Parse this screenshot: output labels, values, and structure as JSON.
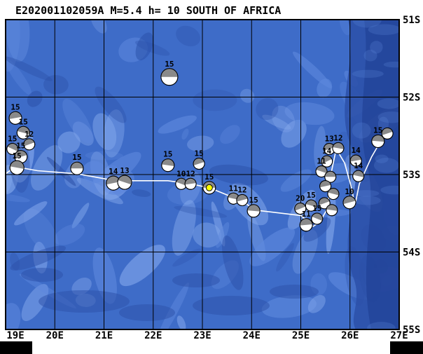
{
  "title": "E202001102059A M=5.4 h= 10 SOUTH OF AFRICA",
  "map": {
    "lon_range": [
      19,
      27
    ],
    "lat_range": [
      51,
      55
    ],
    "lon_ticks": [
      {
        "value": 19,
        "label": "19E"
      },
      {
        "value": 20,
        "label": "20E"
      },
      {
        "value": 21,
        "label": "21E"
      },
      {
        "value": 22,
        "label": "22E"
      },
      {
        "value": 23,
        "label": "23E"
      },
      {
        "value": 24,
        "label": "24E"
      },
      {
        "value": 25,
        "label": "25E"
      },
      {
        "value": 26,
        "label": "26E"
      },
      {
        "value": 27,
        "label": "27E"
      }
    ],
    "lat_ticks": [
      {
        "value": 51,
        "label": "51S"
      },
      {
        "value": 52,
        "label": "52S"
      },
      {
        "value": 53,
        "label": "53S"
      },
      {
        "value": 54,
        "label": "54S"
      },
      {
        "value": 55,
        "label": "55S"
      }
    ],
    "colors": {
      "page_bg": "#ffffff",
      "sea_base": "#3e6cc8",
      "sea_light": "#5d88dd",
      "sea_lighter": "#85a9ec",
      "sea_dark": "#2b50a8",
      "sea_darker": "#1d3d90",
      "grid": "#000000",
      "ridge_line": "#ffffff",
      "ball_fill": "#ffffff",
      "ball_shade": "#8a8a8a",
      "ball_outline": "#000000",
      "label": "#000000",
      "highlight": "#ffff00",
      "corner": "#000000"
    },
    "ridge_line": [
      [
        19.0,
        52.99
      ],
      [
        19.2,
        52.9
      ],
      [
        19.65,
        52.95
      ],
      [
        20.45,
        52.99
      ],
      [
        21.23,
        53.08
      ],
      [
        22.3,
        53.08
      ],
      [
        22.76,
        53.12
      ],
      [
        23.14,
        53.17
      ],
      [
        23.8,
        53.34
      ],
      [
        24.08,
        53.46
      ],
      [
        25.01,
        53.53
      ],
      [
        25.25,
        53.67
      ],
      [
        25.39,
        53.61
      ],
      [
        25.55,
        53.43
      ],
      [
        25.6,
        53.03
      ],
      [
        25.72,
        52.67
      ],
      [
        25.89,
        52.85
      ],
      [
        26.03,
        53.17
      ],
      [
        26.1,
        53.4
      ],
      [
        26.19,
        53.12
      ],
      [
        26.44,
        52.77
      ],
      [
        26.66,
        52.53
      ],
      [
        26.83,
        52.43
      ]
    ],
    "events": [
      {
        "lon": 22.33,
        "lat": 51.74,
        "r": 12,
        "label": "15",
        "rot": 0
      },
      {
        "lon": 19.2,
        "lat": 52.27,
        "r": 9,
        "label": "15",
        "rot": -10
      },
      {
        "lon": 19.36,
        "lat": 52.46,
        "r": 9,
        "label": "15",
        "rot": 15
      },
      {
        "lon": 19.48,
        "lat": 52.61,
        "r": 8,
        "label": "12",
        "rot": -20
      },
      {
        "lon": 19.14,
        "lat": 52.67,
        "r": 8,
        "label": "15",
        "rot": 25
      },
      {
        "lon": 19.31,
        "lat": 52.77,
        "r": 9,
        "label": "15",
        "rot": -15
      },
      {
        "lon": 19.23,
        "lat": 52.91,
        "r": 10,
        "label": "15",
        "rot": 10
      },
      {
        "lon": 20.45,
        "lat": 52.92,
        "r": 9,
        "label": "15",
        "rot": 0
      },
      {
        "lon": 21.19,
        "lat": 53.11,
        "r": 10,
        "label": "14",
        "rot": -12
      },
      {
        "lon": 21.42,
        "lat": 53.1,
        "r": 10,
        "label": "13",
        "rot": 18
      },
      {
        "lon": 22.3,
        "lat": 52.88,
        "r": 9,
        "label": "15",
        "rot": 8
      },
      {
        "lon": 22.93,
        "lat": 52.86,
        "r": 8,
        "label": "15",
        "rot": -18
      },
      {
        "lon": 22.57,
        "lat": 53.12,
        "r": 8,
        "label": "10",
        "rot": 20
      },
      {
        "lon": 22.76,
        "lat": 53.12,
        "r": 8,
        "label": "12",
        "rot": -8
      },
      {
        "lon": 23.14,
        "lat": 53.17,
        "r": 9,
        "label": "15",
        "rot": 0
      },
      {
        "lon": 23.63,
        "lat": 53.31,
        "r": 8,
        "label": "11",
        "rot": 12
      },
      {
        "lon": 23.81,
        "lat": 53.33,
        "r": 8,
        "label": "12",
        "rot": -15
      },
      {
        "lon": 24.04,
        "lat": 53.47,
        "r": 9,
        "label": "15",
        "rot": 5
      },
      {
        "lon": 24.99,
        "lat": 53.44,
        "r": 8,
        "label": "20",
        "rot": -22
      },
      {
        "lon": 25.21,
        "lat": 53.4,
        "r": 8,
        "label": "15",
        "rot": 15
      },
      {
        "lon": 25.11,
        "lat": 53.65,
        "r": 9,
        "label": "11",
        "rot": -5
      },
      {
        "lon": 25.33,
        "lat": 53.57,
        "r": 8,
        "label": "15",
        "rot": 22
      },
      {
        "lon": 25.58,
        "lat": 52.67,
        "r": 8,
        "label": "13",
        "rot": -18
      },
      {
        "lon": 25.76,
        "lat": 52.66,
        "r": 8,
        "label": "12",
        "rot": 10
      },
      {
        "lon": 25.53,
        "lat": 52.83,
        "r": 8,
        "label": "14",
        "rot": -25
      },
      {
        "lon": 25.42,
        "lat": 52.96,
        "r": 8,
        "label": "11",
        "rot": 18
      },
      {
        "lon": 25.6,
        "lat": 53.03,
        "r": 8,
        "label": "",
        "rot": 0
      },
      {
        "lon": 25.5,
        "lat": 53.15,
        "r": 8,
        "label": "",
        "rot": -12
      },
      {
        "lon": 25.66,
        "lat": 53.25,
        "r": 8,
        "label": "",
        "rot": 15
      },
      {
        "lon": 25.48,
        "lat": 53.37,
        "r": 8,
        "label": "",
        "rot": -20
      },
      {
        "lon": 25.63,
        "lat": 53.46,
        "r": 8,
        "label": "",
        "rot": 8
      },
      {
        "lon": 26.12,
        "lat": 52.82,
        "r": 8,
        "label": "14",
        "rot": -10
      },
      {
        "lon": 26.17,
        "lat": 53.02,
        "r": 8,
        "label": "14",
        "rot": 12
      },
      {
        "lon": 25.99,
        "lat": 53.36,
        "r": 9,
        "label": "10",
        "rot": -15
      },
      {
        "lon": 26.57,
        "lat": 52.57,
        "r": 9,
        "label": "15",
        "rot": 5
      },
      {
        "lon": 26.76,
        "lat": 52.47,
        "r": 8,
        "label": "",
        "rot": -18
      }
    ],
    "highlight": {
      "lon": 23.14,
      "lat": 53.17,
      "r": 4.5
    }
  }
}
